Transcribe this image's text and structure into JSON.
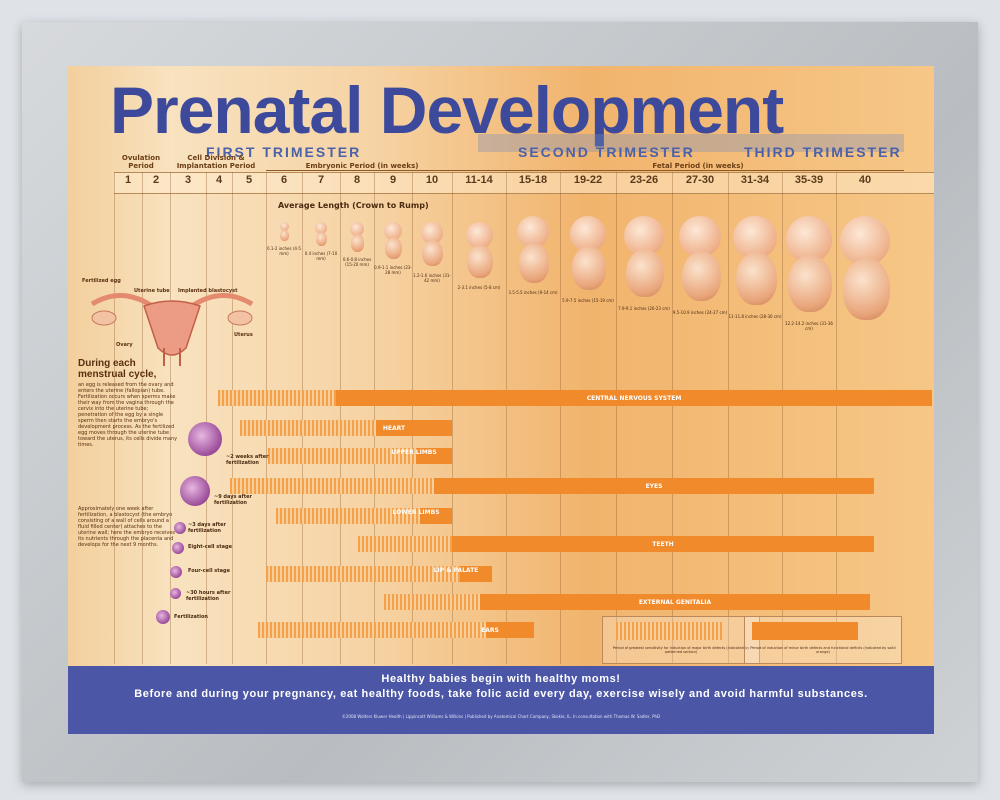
{
  "title": "Prenatal Development",
  "trimesters": {
    "first": "FIRST TRIMESTER",
    "second": "SECOND TRIMESTER",
    "third": "THIRD TRIMESTER"
  },
  "periods": {
    "ovulation": "Ovulation Period",
    "cell_division": "Cell Division & Implantation Period",
    "embryonic": "Embryonic Period (in weeks)",
    "fetal": "Fetal Period (in weeks)"
  },
  "weeks": [
    "1",
    "2",
    "3",
    "4",
    "5",
    "6",
    "7",
    "8",
    "9",
    "10",
    "11-14",
    "15-18",
    "19-22",
    "23-26",
    "27-30",
    "31-34",
    "35-39",
    "40"
  ],
  "length_title": "Average Length (Crown to Rump)",
  "lengths": [
    "0.1-2 inches (4-5 mm)",
    "0.4 inches (7-10 mm)",
    "0.6-0.8 inches (15-20 mm)",
    "0.9-1.1 inches (23-28 mm)",
    "1.2-1.6 inches (31-42 mm)",
    "2-3.1 inches (5-8 cm)",
    "3.5-5.5 inches (9-14 cm)",
    "5.9-7.5 inches (15-19 cm)",
    "7.9-9.1 inches (20-23 cm)",
    "9.5-10.9 inches (24-27 cm)",
    "11-11.8 inches (28-30 cm)",
    "12.2-14.2 inches (31-36 cm)"
  ],
  "systems": [
    {
      "label": "CENTRAL NERVOUS SYSTEM"
    },
    {
      "label": "HEART"
    },
    {
      "label": "UPPER LIMBS"
    },
    {
      "label": "EYES"
    },
    {
      "label": "LOWER LIMBS"
    },
    {
      "label": "TEETH"
    },
    {
      "label": "LIP & PALATE"
    },
    {
      "label": "EXTERNAL GENITALIA"
    },
    {
      "label": "EARS"
    }
  ],
  "anatomy": {
    "fertilized_egg": "Fertilized egg",
    "uterine_tube": "Uterine tube",
    "implanted_blastocyst": "Implanted blastocyst",
    "ovary": "Ovary",
    "uterus": "Uterus"
  },
  "cycle": {
    "heading": "During each menstrual cycle,",
    "text": "an egg is released from the ovary and enters the uterine (fallopian) tube. Fertilization occurs when sperms make their way from the vagina through the cervix into the uterine tube; penetration of the egg by a single sperm then starts the embryo's development process. As the fertilized egg moves through the uterine tube toward the uterus, its cells divide many times.",
    "text2": "Approximately one week after fertilization, a blastocyst (the embryo consisting of a wall of cells around a fluid filled center) attaches to the uterine wall; here the embryo receives its nutrients through the placenta and develops for the next 9 months."
  },
  "stages": [
    {
      "label": "~2 weeks after fertilization"
    },
    {
      "label": "~9 days after fertilization"
    },
    {
      "label": "~3 days after fertilization"
    },
    {
      "label": "Eight-cell stage"
    },
    {
      "label": "Four-cell stage"
    },
    {
      "label": "~30 hours after fertilization"
    },
    {
      "label": "Fertilization"
    }
  ],
  "legend": {
    "dashed": "Period of greatest sensitivity for induction of major birth defects (indicated by patterned section)",
    "solid": "Period of induction of minor birth defects and functional deficits (indicated by solid orange)"
  },
  "footer": {
    "line1": "Healthy babies begin with healthy moms!",
    "line2": "Before and during your pregnancy, eat healthy foods, take folic acid every day, exercise wisely and avoid harmful substances.",
    "credits": "©2008 Wolters Kluwer Health | Lippincott Williams & Wilkins | Published by Anatomical Chart Company, Skokie, IL. In consultation with Thomas W. Sadler, PhD"
  },
  "colors": {
    "title": "#3d4a9c",
    "bar": "#f08a2a",
    "footer": "#4b57a6"
  }
}
